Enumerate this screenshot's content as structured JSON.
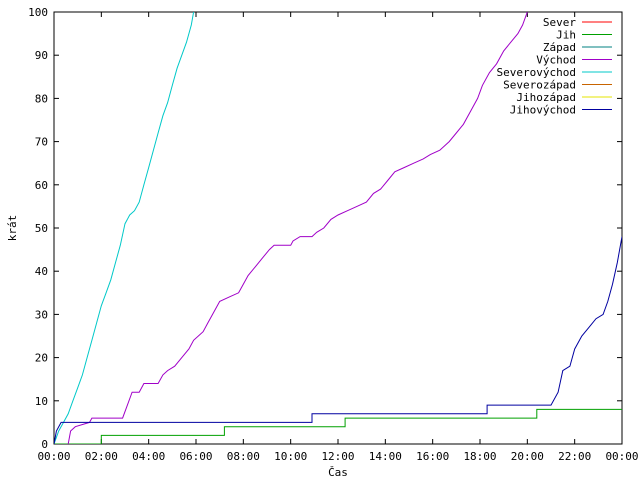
{
  "chart_data": {
    "type": "line",
    "title": "",
    "xlabel": "Čas",
    "ylabel": "krát",
    "xlim": [
      0,
      24
    ],
    "ylim": [
      0,
      100
    ],
    "x_ticks": [
      "00:00",
      "02:00",
      "04:00",
      "06:00",
      "08:00",
      "10:00",
      "12:00",
      "14:00",
      "16:00",
      "18:00",
      "20:00",
      "22:00",
      "00:00"
    ],
    "y_ticks": [
      0,
      10,
      20,
      30,
      40,
      50,
      60,
      70,
      80,
      90,
      100
    ],
    "grid": false,
    "legend_position": "top-right",
    "series": [
      {
        "name": "Sever",
        "color": "#ff0000",
        "points": []
      },
      {
        "name": "Jih",
        "color": "#00a000",
        "points": [
          [
            0,
            0
          ],
          [
            2.0,
            0
          ],
          [
            2.0,
            2
          ],
          [
            7.2,
            2
          ],
          [
            7.2,
            4
          ],
          [
            12.3,
            4
          ],
          [
            12.3,
            6
          ],
          [
            20.4,
            6
          ],
          [
            20.4,
            8
          ],
          [
            24,
            8
          ]
        ]
      },
      {
        "name": "Západ",
        "color": "#008080",
        "points": []
      },
      {
        "name": "Východ",
        "color": "#a000c8",
        "points": [
          [
            0.6,
            0
          ],
          [
            0.7,
            3
          ],
          [
            0.9,
            4
          ],
          [
            1.5,
            5
          ],
          [
            1.6,
            6
          ],
          [
            2.9,
            6
          ],
          [
            3.1,
            9
          ],
          [
            3.3,
            12
          ],
          [
            3.6,
            12
          ],
          [
            3.8,
            14
          ],
          [
            4.4,
            14
          ],
          [
            4.6,
            16
          ],
          [
            4.8,
            17
          ],
          [
            5.1,
            18
          ],
          [
            5.4,
            20
          ],
          [
            5.7,
            22
          ],
          [
            5.9,
            24
          ],
          [
            6.3,
            26
          ],
          [
            6.5,
            28
          ],
          [
            6.8,
            31
          ],
          [
            7.0,
            33
          ],
          [
            7.4,
            34
          ],
          [
            7.8,
            35
          ],
          [
            8.0,
            37
          ],
          [
            8.2,
            39
          ],
          [
            8.5,
            41
          ],
          [
            8.8,
            43
          ],
          [
            9.1,
            45
          ],
          [
            9.3,
            46
          ],
          [
            10.0,
            46
          ],
          [
            10.1,
            47
          ],
          [
            10.4,
            48
          ],
          [
            10.9,
            48
          ],
          [
            11.1,
            49
          ],
          [
            11.4,
            50
          ],
          [
            11.7,
            52
          ],
          [
            12.0,
            53
          ],
          [
            12.4,
            54
          ],
          [
            12.8,
            55
          ],
          [
            13.2,
            56
          ],
          [
            13.5,
            58
          ],
          [
            13.8,
            59
          ],
          [
            14.1,
            61
          ],
          [
            14.4,
            63
          ],
          [
            14.8,
            64
          ],
          [
            15.2,
            65
          ],
          [
            15.6,
            66
          ],
          [
            15.9,
            67
          ],
          [
            16.3,
            68
          ],
          [
            16.7,
            70
          ],
          [
            17.0,
            72
          ],
          [
            17.3,
            74
          ],
          [
            17.6,
            77
          ],
          [
            17.9,
            80
          ],
          [
            18.1,
            83
          ],
          [
            18.4,
            86
          ],
          [
            18.7,
            88
          ],
          [
            19.0,
            91
          ],
          [
            19.3,
            93
          ],
          [
            19.6,
            95
          ],
          [
            19.8,
            97
          ],
          [
            20.0,
            100
          ]
        ]
      },
      {
        "name": "Severovýchod",
        "color": "#00c8c8",
        "points": [
          [
            0,
            0
          ],
          [
            0.2,
            3
          ],
          [
            0.4,
            5
          ],
          [
            0.6,
            7
          ],
          [
            0.8,
            10
          ],
          [
            1.0,
            13
          ],
          [
            1.2,
            16
          ],
          [
            1.4,
            20
          ],
          [
            1.6,
            24
          ],
          [
            1.8,
            28
          ],
          [
            2.0,
            32
          ],
          [
            2.2,
            35
          ],
          [
            2.4,
            38
          ],
          [
            2.6,
            42
          ],
          [
            2.8,
            46
          ],
          [
            3.0,
            51
          ],
          [
            3.2,
            53
          ],
          [
            3.4,
            54
          ],
          [
            3.6,
            56
          ],
          [
            3.8,
            60
          ],
          [
            4.0,
            64
          ],
          [
            4.2,
            68
          ],
          [
            4.4,
            72
          ],
          [
            4.6,
            76
          ],
          [
            4.8,
            79
          ],
          [
            5.0,
            83
          ],
          [
            5.2,
            87
          ],
          [
            5.4,
            90
          ],
          [
            5.6,
            93
          ],
          [
            5.8,
            97
          ],
          [
            5.9,
            100
          ]
        ]
      },
      {
        "name": "Severozápad",
        "color": "#c86400",
        "points": []
      },
      {
        "name": "Jihozápad",
        "color": "#e6e600",
        "points": []
      },
      {
        "name": "Jihovýchod",
        "color": "#0000a0",
        "points": [
          [
            0,
            0
          ],
          [
            0.1,
            3
          ],
          [
            0.3,
            5
          ],
          [
            10.9,
            5
          ],
          [
            10.9,
            7
          ],
          [
            18.3,
            7
          ],
          [
            18.3,
            9
          ],
          [
            21.0,
            9
          ],
          [
            21.3,
            12
          ],
          [
            21.5,
            17
          ],
          [
            21.8,
            18
          ],
          [
            22.0,
            22
          ],
          [
            22.3,
            25
          ],
          [
            22.6,
            27
          ],
          [
            22.9,
            29
          ],
          [
            23.2,
            30
          ],
          [
            23.4,
            33
          ],
          [
            23.6,
            37
          ],
          [
            23.8,
            42
          ],
          [
            24.0,
            48
          ]
        ]
      }
    ]
  }
}
